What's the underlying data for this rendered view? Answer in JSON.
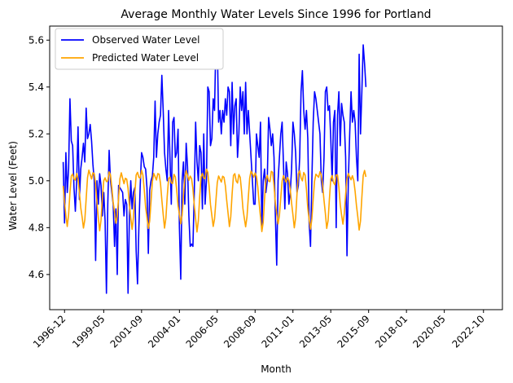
{
  "colors": {
    "observed": "#0000ff",
    "predicted": "#ffa500",
    "axis": "#000000",
    "background": "#ffffff"
  },
  "chart_data": {
    "type": "line",
    "title": "Average Monthly Water Levels Since 1996 for Portland",
    "xlabel": "Month",
    "ylabel": "Water Level (Feet)",
    "x_start": "1996-01",
    "x_end": "2023-12",
    "ylim": [
      4.45,
      5.66
    ],
    "x_ticks": [
      "1996-12",
      "1999-05",
      "2001-09",
      "2004-01",
      "2006-05",
      "2008-09",
      "2011-01",
      "2013-05",
      "2015-09",
      "2018-01",
      "2020-05",
      "2022-10"
    ],
    "y_ticks": [
      "4.6",
      "4.8",
      "5.0",
      "5.2",
      "5.4",
      "5.6"
    ],
    "legend": {
      "position": "top-left",
      "entries": [
        "Observed Water Level",
        "Predicted Water Level"
      ]
    },
    "grid": false,
    "series": [
      {
        "name": "Observed Water Level",
        "color": "#0000ff",
        "x_start": "1996-01",
        "values": [
          5.08,
          4.82,
          5.12,
          4.95,
          5.05,
          5.35,
          5.17,
          5.15,
          4.97,
          4.87,
          5.0,
          5.23,
          4.92,
          5.05,
          5.1,
          5.16,
          5.08,
          5.31,
          5.18,
          5.2,
          5.24,
          5.17,
          5.07,
          5.0,
          4.66,
          5.0,
          4.9,
          5.03,
          4.98,
          4.85,
          4.95,
          4.83,
          4.52,
          4.9,
          5.13,
          5.0,
          4.95,
          4.9,
          4.72,
          4.88,
          4.6,
          4.98,
          4.97,
          4.96,
          4.95,
          4.85,
          4.92,
          4.9,
          4.52,
          4.85,
          5.0,
          4.88,
          4.95,
          4.97,
          4.7,
          4.56,
          4.8,
          4.98,
          5.12,
          5.1,
          5.06,
          5.05,
          4.97,
          4.69,
          4.96,
          5.0,
          5.02,
          5.1,
          5.34,
          5.1,
          5.2,
          5.25,
          5.28,
          5.45,
          5.3,
          5.12,
          5.05,
          5.0,
          5.3,
          5.1,
          4.9,
          5.25,
          5.27,
          5.1,
          5.12,
          5.22,
          4.8,
          4.58,
          5.0,
          5.08,
          4.9,
          5.16,
          5.06,
          4.85,
          4.72,
          4.73,
          4.72,
          4.95,
          5.25,
          5.08,
          5.0,
          5.15,
          5.12,
          4.88,
          5.2,
          4.9,
          5.0,
          5.4,
          5.38,
          5.15,
          5.18,
          5.35,
          5.3,
          5.6,
          5.6,
          5.25,
          5.3,
          5.2,
          5.3,
          5.25,
          5.35,
          5.28,
          5.4,
          5.38,
          5.15,
          5.42,
          5.2,
          5.32,
          5.35,
          5.1,
          5.2,
          5.4,
          5.3,
          5.38,
          5.2,
          5.42,
          5.2,
          5.3,
          5.2,
          5.1,
          5.0,
          4.9,
          4.9,
          5.2,
          5.15,
          5.1,
          5.25,
          4.8,
          5.0,
          5.05,
          4.95,
          5.0,
          5.27,
          5.22,
          5.15,
          5.2,
          5.1,
          4.85,
          4.64,
          5.0,
          5.1,
          5.2,
          5.25,
          5.07,
          4.88,
          5.08,
          5.03,
          4.9,
          4.95,
          5.05,
          5.25,
          5.2,
          5.12,
          4.95,
          4.98,
          5.1,
          5.38,
          5.47,
          5.3,
          5.22,
          5.3,
          5.18,
          4.82,
          4.72,
          5.0,
          5.25,
          5.38,
          5.35,
          5.3,
          5.25,
          5.2,
          5.0,
          4.95,
          5.1,
          5.38,
          5.4,
          5.3,
          5.32,
          5.18,
          5.0,
          5.25,
          5.3,
          4.8,
          5.28,
          5.38,
          5.15,
          5.33,
          5.28,
          5.25,
          5.1,
          4.68,
          5.0,
          5.2,
          5.38,
          5.25,
          5.3,
          5.25,
          5.1,
          5.0,
          5.54,
          5.2,
          5.38,
          5.58,
          5.5,
          5.4
        ]
      },
      {
        "name": "Predicted Water Level",
        "color": "#ffa500",
        "x_start": "1996-01",
        "monthly_pattern": [
          4.85,
          4.8,
          4.84,
          4.93,
          5.01,
          5.03,
          5.01,
          5.0,
          5.03,
          5.02,
          4.97,
          4.9
        ],
        "notes": "Predicted series repeats a seasonal cycle with small year-to-year variation."
      }
    ]
  }
}
